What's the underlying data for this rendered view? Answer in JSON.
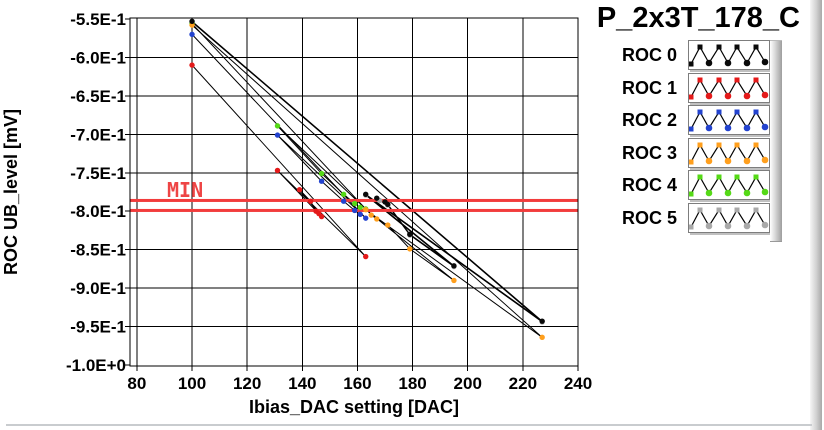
{
  "panel": {
    "title": "P_2x3T_178_C"
  },
  "chart_data": {
    "type": "line",
    "title": "P_2x3T_178_C",
    "xlabel": "Ibias_DAC setting [DAC]",
    "ylabel": "ROC UB_level [mV]",
    "xlim": [
      77.5,
      240
    ],
    "ylim": [
      -1.0,
      -0.55
    ],
    "x_ticks": [
      80,
      100,
      120,
      140,
      160,
      180,
      200,
      220,
      240
    ],
    "x_tick_labels": [
      "80",
      "100",
      "120",
      "140",
      "160",
      "180",
      "200",
      "220",
      "240"
    ],
    "y_ticks": [
      -0.55,
      -0.6,
      -0.65,
      -0.7,
      -0.75,
      -0.8,
      -0.85,
      -0.9,
      -0.95,
      -1.0
    ],
    "y_tick_labels": [
      "-5.5E-1",
      "-6.0E-1",
      "-6.5E-1",
      "-7.0E-1",
      "-7.5E-1",
      "-8.0E-1",
      "-8.5E-1",
      "-9.0E-1",
      "-9.5E-1",
      "-1.0E+0"
    ],
    "grid": true,
    "legend_position": "right",
    "line_color": "#000000",
    "min_marker": {
      "label": "MIN",
      "label_color": "#ee4545",
      "line_color": "#f23c3c",
      "lines_y": [
        -0.786,
        -0.799
      ]
    },
    "series": [
      {
        "name": "ROC 0",
        "marker_color": "#0a0a0a",
        "scan_points": [
          [
            100,
            -0.553
          ],
          [
            227,
            -0.943
          ],
          [
            163,
            -0.778
          ],
          [
            195,
            -0.871
          ],
          [
            179,
            -0.83
          ],
          [
            171,
            -0.791
          ],
          [
            167,
            -0.783
          ],
          [
            170,
            -0.788
          ]
        ]
      },
      {
        "name": "ROC 1",
        "marker_color": "#e41a1a",
        "scan_points": [
          [
            100,
            -0.61
          ],
          [
            163,
            -0.859
          ],
          [
            131,
            -0.747
          ],
          [
            147,
            -0.807
          ],
          [
            139,
            -0.772
          ],
          [
            143,
            -0.787
          ],
          [
            145,
            -0.8
          ],
          [
            146,
            -0.803
          ]
        ]
      },
      {
        "name": "ROC 2",
        "marker_color": "#2343cf",
        "scan_points": [
          [
            100,
            -0.57
          ],
          [
            163,
            -0.809
          ],
          [
            131,
            -0.701
          ],
          [
            147,
            -0.761
          ],
          [
            155,
            -0.787
          ],
          [
            159,
            -0.799
          ],
          [
            161,
            -0.804
          ]
        ]
      },
      {
        "name": "ROC 3",
        "marker_color": "#ff9f1d",
        "scan_points": [
          [
            100,
            -0.558
          ],
          [
            227,
            -0.964
          ],
          [
            163,
            -0.798
          ],
          [
            195,
            -0.89
          ],
          [
            179,
            -0.849
          ],
          [
            171,
            -0.818
          ],
          [
            167,
            -0.81
          ],
          [
            165,
            -0.805
          ]
        ]
      },
      {
        "name": "ROC 4",
        "marker_color": "#55d916",
        "scan_points": [
          [
            100,
            -0.556
          ],
          [
            163,
            -0.797
          ],
          [
            131,
            -0.689
          ],
          [
            147,
            -0.751
          ],
          [
            155,
            -0.778
          ],
          [
            159,
            -0.79
          ],
          [
            161,
            -0.795
          ]
        ]
      },
      {
        "name": "ROC 5",
        "marker_color": "#a9a9a9",
        "scan_points": [
          [
            100,
            -0.554
          ],
          [
            227,
            -0.944
          ],
          [
            163,
            -0.779
          ],
          [
            195,
            -0.872
          ],
          [
            179,
            -0.831
          ],
          [
            171,
            -0.792
          ],
          [
            168,
            -0.786
          ]
        ]
      }
    ]
  }
}
